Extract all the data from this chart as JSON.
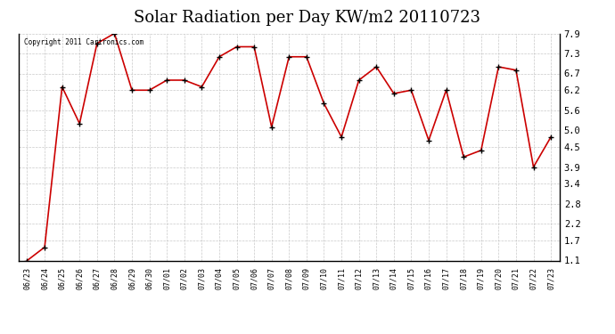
{
  "title": "Solar Radiation per Day KW/m2 20110723",
  "copyright_text": "Copyright 2011 Cartronics.com",
  "x_labels": [
    "06/23",
    "06/24",
    "06/25",
    "06/26",
    "06/27",
    "06/28",
    "06/29",
    "06/30",
    "07/01",
    "07/02",
    "07/03",
    "07/04",
    "07/05",
    "07/06",
    "07/07",
    "07/08",
    "07/09",
    "07/10",
    "07/11",
    "07/12",
    "07/13",
    "07/14",
    "07/15",
    "07/16",
    "07/17",
    "07/18",
    "07/19",
    "07/20",
    "07/21",
    "07/22",
    "07/23"
  ],
  "y_values": [
    1.1,
    1.5,
    6.3,
    5.2,
    7.6,
    7.9,
    6.2,
    6.2,
    6.5,
    6.5,
    6.3,
    7.2,
    7.5,
    7.5,
    5.1,
    7.2,
    7.2,
    5.8,
    4.8,
    6.5,
    6.9,
    6.1,
    6.2,
    4.7,
    6.2,
    4.2,
    4.4,
    6.9,
    6.8,
    3.9,
    4.8
  ],
  "line_color": "#cc0000",
  "marker_color": "#000000",
  "bg_color": "#ffffff",
  "grid_color": "#bbbbbb",
  "yticks": [
    1.1,
    1.7,
    2.2,
    2.8,
    3.4,
    3.9,
    4.5,
    5.0,
    5.6,
    6.2,
    6.7,
    7.3,
    7.9
  ],
  "ylim": [
    1.1,
    7.9
  ],
  "title_fontsize": 13
}
